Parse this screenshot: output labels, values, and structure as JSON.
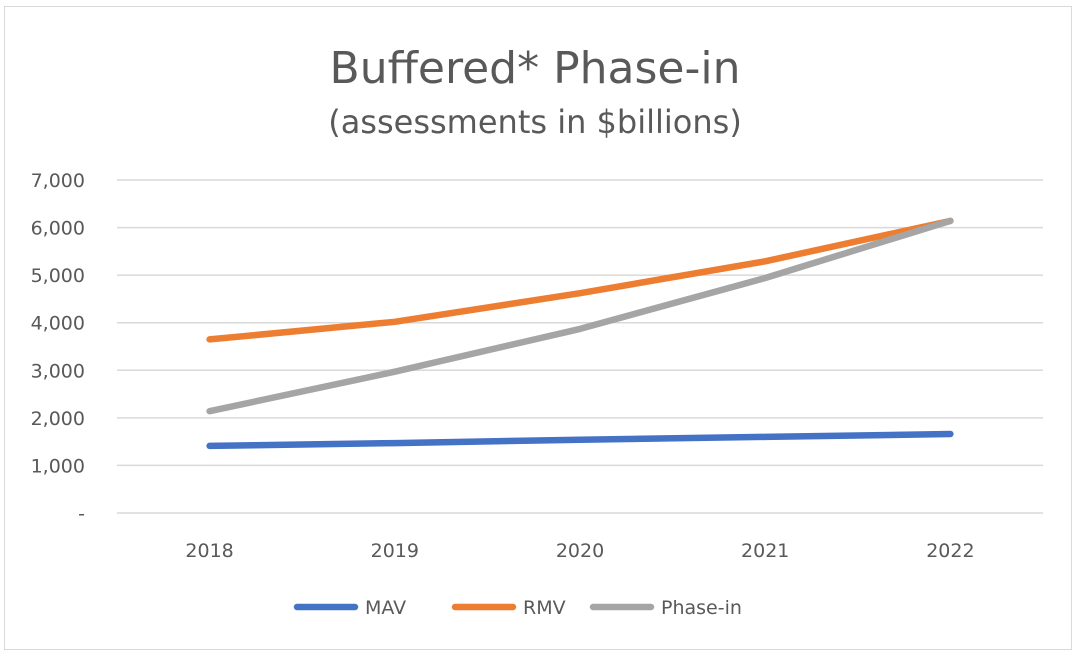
{
  "chart_data": {
    "type": "line",
    "title": "Buffered* Phase-in",
    "subtitle": "(assessments in $billions)",
    "categories": [
      "2018",
      "2019",
      "2020",
      "2021",
      "2022"
    ],
    "series": [
      {
        "name": "MAV",
        "color": "#4472c4",
        "values": [
          1410,
          1470,
          1540,
          1600,
          1660
        ]
      },
      {
        "name": "RMV",
        "color": "#ed7d31",
        "values": [
          3650,
          4020,
          4620,
          5290,
          6140
        ]
      },
      {
        "name": "Phase-in",
        "color": "#a5a5a5",
        "values": [
          2140,
          2970,
          3870,
          4940,
          6140
        ]
      }
    ],
    "yticks": [
      "-",
      "1,000",
      "2,000",
      "3,000",
      "4,000",
      "5,000",
      "6,000",
      "7,000"
    ],
    "ylim": [
      0,
      7000
    ],
    "grid": true,
    "legend_position": "bottom",
    "xlabel": "",
    "ylabel": ""
  }
}
